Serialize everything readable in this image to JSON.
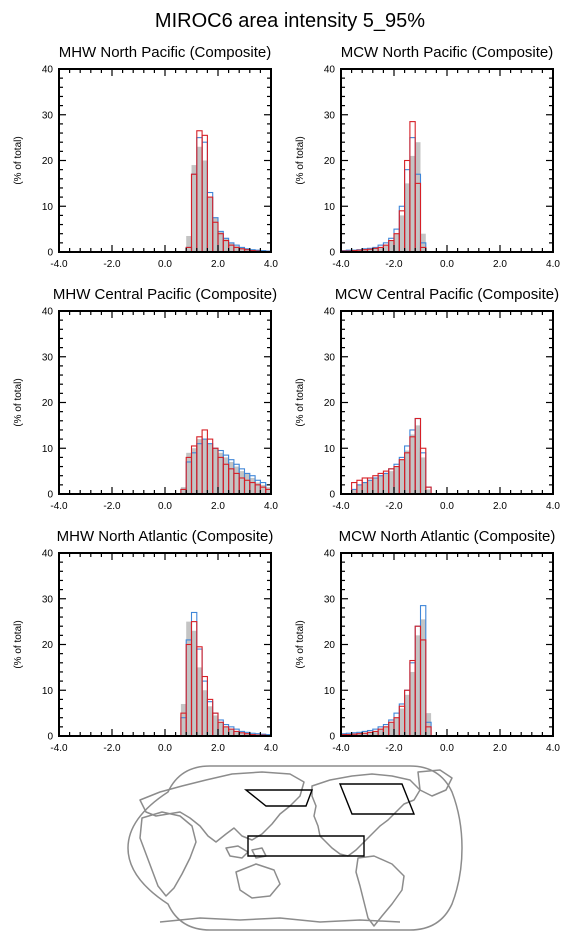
{
  "figure": {
    "title": "MIROC6 area intensity 5_95%",
    "colors": {
      "model_fill": "#c4c4c4",
      "series_a": "#3f86d8",
      "series_b": "#d61f26"
    },
    "map": {
      "projection": "robinson",
      "coastline_color": "#8c8c8c",
      "region_outline_color": "#000000"
    }
  },
  "chart_data": [
    {
      "type": "bar",
      "title": "MHW North Pacific (Composite)",
      "ylabel": "(% of total)",
      "xlim": [
        -4.0,
        4.0
      ],
      "ylim": [
        0,
        40
      ],
      "xticks": [
        "-4.0",
        "-2.0",
        "0.0",
        "2.0",
        "4.0"
      ],
      "yticks": [
        "0",
        "10",
        "20",
        "30",
        "40"
      ],
      "bin_width": 0.2,
      "bin_starts": [
        0.8,
        1.0,
        1.2,
        1.4,
        1.6,
        1.8,
        2.0,
        2.2,
        2.4,
        2.6,
        2.8,
        3.0,
        3.2,
        3.4,
        3.6,
        3.8
      ],
      "series": [
        {
          "values": [
            3.5,
            19,
            23,
            20,
            12,
            7.5,
            4.5,
            3,
            2,
            1.3,
            1,
            0.7,
            0.5,
            0.4,
            0.3,
            0.2
          ]
        },
        {
          "values": [
            1,
            17,
            25,
            24,
            13,
            7.5,
            4.5,
            3,
            2,
            1.5,
            1,
            0.7,
            0.5,
            0.4,
            0.3,
            0.2
          ]
        },
        {
          "values": [
            1,
            17,
            26.5,
            25.5,
            12,
            6.5,
            4,
            2.5,
            1.5,
            1,
            0.7,
            0.5,
            0.3,
            0.2,
            0.1,
            0.1
          ]
        }
      ]
    },
    {
      "type": "bar",
      "title": "MCW North Pacific (Composite)",
      "ylabel": "(% of total)",
      "xlim": [
        -4.0,
        4.0
      ],
      "ylim": [
        0,
        40
      ],
      "xticks": [
        "-4.0",
        "-2.0",
        "0.0",
        "2.0",
        "4.0"
      ],
      "yticks": [
        "0",
        "10",
        "20",
        "30",
        "40"
      ],
      "bin_width": 0.2,
      "bin_starts": [
        -4.0,
        -3.8,
        -3.6,
        -3.4,
        -3.2,
        -3.0,
        -2.8,
        -2.6,
        -2.4,
        -2.2,
        -2.0,
        -1.8,
        -1.6,
        -1.4,
        -1.2,
        -1.0
      ],
      "series": [
        {
          "values": [
            0.2,
            0.3,
            0.3,
            0.4,
            0.5,
            0.6,
            0.8,
            1,
            1.5,
            2.5,
            4,
            8,
            15,
            21,
            24,
            4
          ]
        },
        {
          "values": [
            0.3,
            0.4,
            0.4,
            0.5,
            0.7,
            0.8,
            1,
            1.5,
            2,
            3,
            5,
            10,
            18,
            25,
            17,
            2
          ]
        },
        {
          "values": [
            0.2,
            0.2,
            0.3,
            0.4,
            0.5,
            0.6,
            0.8,
            1,
            1.5,
            2.5,
            4,
            9,
            20,
            28.5,
            15,
            1
          ]
        }
      ]
    },
    {
      "type": "bar",
      "title": "MHW Central Pacific (Composite)",
      "ylabel": "(% of total)",
      "xlim": [
        -4.0,
        4.0
      ],
      "ylim": [
        0,
        40
      ],
      "xticks": [
        "-4.0",
        "-2.0",
        "0.0",
        "2.0",
        "4.0"
      ],
      "yticks": [
        "0",
        "10",
        "20",
        "30",
        "40"
      ],
      "bin_width": 0.2,
      "bin_starts": [
        0.6,
        0.8,
        1.0,
        1.2,
        1.4,
        1.6,
        1.8,
        2.0,
        2.2,
        2.4,
        2.6,
        2.8,
        3.0,
        3.2,
        3.4,
        3.6,
        3.8
      ],
      "series": [
        {
          "values": [
            1.5,
            9,
            10,
            12,
            12,
            11,
            10,
            9,
            8,
            7,
            6,
            5,
            4.5,
            3.5,
            2.5,
            2,
            1.5
          ]
        },
        {
          "values": [
            1,
            7,
            9,
            11,
            12,
            11,
            10,
            9.5,
            8.5,
            7.5,
            6.5,
            5.5,
            4.5,
            4,
            3,
            2.5,
            2
          ]
        },
        {
          "values": [
            1,
            8,
            10.5,
            12.5,
            14,
            12,
            10,
            8,
            6.5,
            5.5,
            4.5,
            3.5,
            3,
            2.5,
            2,
            1.5,
            1
          ]
        }
      ]
    },
    {
      "type": "bar",
      "title": "MCW Central Pacific (Composite)",
      "ylabel": "(% of total)",
      "xlim": [
        -4.0,
        4.0
      ],
      "ylim": [
        0,
        40
      ],
      "xticks": [
        "-4.0",
        "-2.0",
        "0.0",
        "2.0",
        "4.0"
      ],
      "yticks": [
        "0",
        "10",
        "20",
        "30",
        "40"
      ],
      "bin_width": 0.2,
      "bin_starts": [
        -3.6,
        -3.4,
        -3.2,
        -3.0,
        -2.8,
        -2.6,
        -2.4,
        -2.2,
        -2.0,
        -1.8,
        -1.6,
        -1.4,
        -1.2,
        -1.0,
        -0.8
      ],
      "series": [
        {
          "values": [
            1,
            2,
            2.5,
            3,
            3.5,
            4,
            4.5,
            5,
            6,
            7.5,
            9.5,
            13,
            15,
            8,
            1
          ]
        },
        {
          "values": [
            1,
            2,
            2.5,
            3,
            3.5,
            4,
            4.5,
            5.5,
            6.5,
            8,
            10.5,
            14,
            16.5,
            9,
            1.5
          ]
        },
        {
          "values": [
            2.5,
            3,
            3.5,
            3.5,
            4,
            4.5,
            5,
            5.5,
            6,
            7.5,
            9,
            12.5,
            16.5,
            10,
            1.5
          ]
        }
      ]
    },
    {
      "type": "bar",
      "title": "MHW North Atlantic (Composite)",
      "ylabel": "(% of total)",
      "xlim": [
        -4.0,
        4.0
      ],
      "ylim": [
        0,
        40
      ],
      "xticks": [
        "-4.0",
        "-2.0",
        "0.0",
        "2.0",
        "4.0"
      ],
      "yticks": [
        "0",
        "10",
        "20",
        "30",
        "40"
      ],
      "bin_width": 0.2,
      "bin_starts": [
        0.6,
        0.8,
        1.0,
        1.2,
        1.4,
        1.6,
        1.8,
        2.0,
        2.2,
        2.4,
        2.6,
        2.8,
        3.0,
        3.2,
        3.4,
        3.6,
        3.8
      ],
      "series": [
        {
          "values": [
            7,
            25,
            23,
            15,
            10,
            6.5,
            4.5,
            3,
            2,
            1.5,
            1,
            0.8,
            0.6,
            0.4,
            0.3,
            0.2,
            0.2
          ]
        },
        {
          "values": [
            4,
            21,
            27,
            19,
            12,
            7.5,
            5,
            3.5,
            2.5,
            2,
            1.5,
            1,
            0.8,
            0.6,
            0.5,
            0.4,
            0.3
          ]
        },
        {
          "values": [
            5,
            20,
            25,
            19.5,
            13,
            8,
            5,
            3,
            2,
            1.5,
            1,
            0.7,
            0.5,
            0.3,
            0.2,
            0.2,
            0.1
          ]
        }
      ]
    },
    {
      "type": "bar",
      "title": "MCW North Atlantic (Composite)",
      "ylabel": "(% of total)",
      "xlim": [
        -4.0,
        4.0
      ],
      "ylim": [
        0,
        40
      ],
      "xticks": [
        "-4.0",
        "-2.0",
        "0.0",
        "2.0",
        "4.0"
      ],
      "yticks": [
        "0",
        "10",
        "20",
        "30",
        "40"
      ],
      "bin_width": 0.2,
      "bin_starts": [
        -4.0,
        -3.8,
        -3.6,
        -3.4,
        -3.2,
        -3.0,
        -2.8,
        -2.6,
        -2.4,
        -2.2,
        -2.0,
        -1.8,
        -1.6,
        -1.4,
        -1.2,
        -1.0,
        -0.8
      ],
      "series": [
        {
          "values": [
            0.3,
            0.4,
            0.5,
            0.6,
            0.7,
            0.8,
            1,
            1.5,
            2,
            3,
            4,
            6,
            9,
            14,
            22,
            25.5,
            5
          ]
        },
        {
          "values": [
            0.5,
            0.6,
            0.7,
            0.8,
            1,
            1.2,
            1.5,
            2,
            2.5,
            3.5,
            5,
            7,
            10,
            16,
            24,
            28.5,
            3
          ]
        },
        {
          "values": [
            0.3,
            0.3,
            0.4,
            0.5,
            0.6,
            0.8,
            1,
            1.5,
            2,
            3,
            4,
            6.5,
            10,
            16.5,
            24,
            21,
            2
          ]
        }
      ]
    }
  ]
}
